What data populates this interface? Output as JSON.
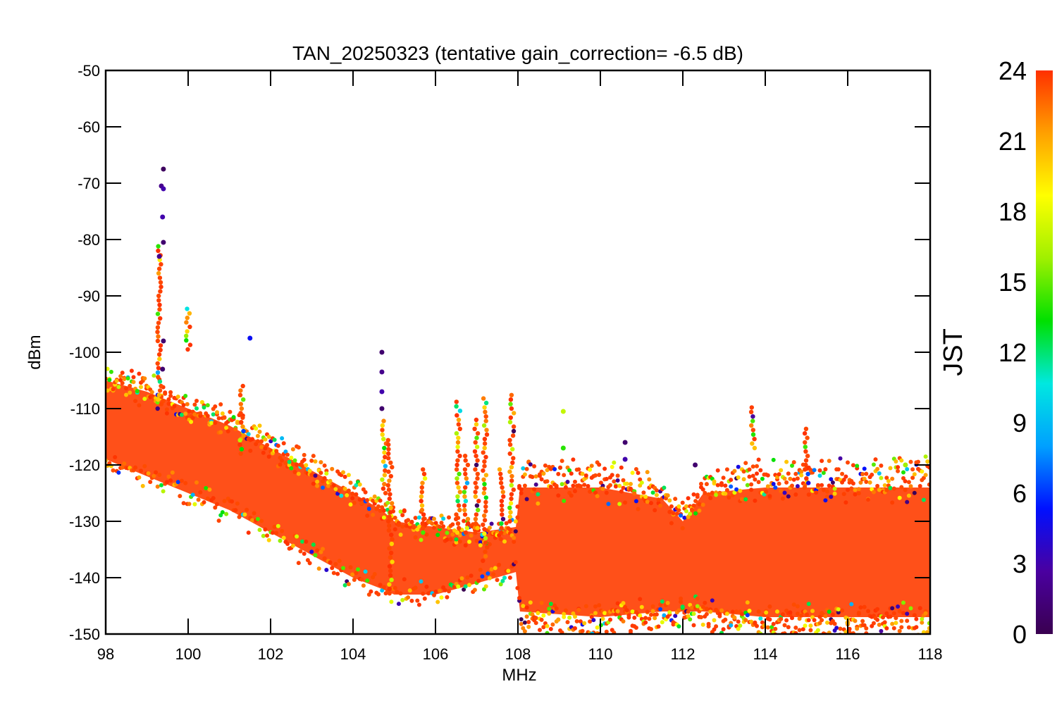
{
  "chart_data": {
    "type": "scatter",
    "title": "TAN_20250323 (tentative gain_correction= -6.5 dB)",
    "xlabel": "MHz",
    "ylabel": "dBm",
    "xlim": [
      98,
      118
    ],
    "ylim": [
      -150,
      -50
    ],
    "x_ticks": [
      "98",
      "100",
      "102",
      "104",
      "106",
      "108",
      "110",
      "112",
      "114",
      "116",
      "118"
    ],
    "y_ticks": [
      "-50",
      "-60",
      "-70",
      "-80",
      "-90",
      "-100",
      "-110",
      "-120",
      "-130",
      "-140",
      "-150"
    ],
    "grid": false,
    "colorbar": {
      "label": "JST",
      "range": [
        0,
        24
      ],
      "ticks": [
        "0",
        "3",
        "6",
        "9",
        "12",
        "15",
        "18",
        "21",
        "24"
      ],
      "colormap": [
        "#3a0050",
        "#4a00a0",
        "#0010ff",
        "#00a0ff",
        "#00e8e0",
        "#00e000",
        "#a0f000",
        "#ffff00",
        "#ffa000",
        "#ff3000"
      ]
    },
    "noise_floor": [
      {
        "x": 98,
        "low": -119,
        "high": -105
      },
      {
        "x": 99,
        "low": -122,
        "high": -107
      },
      {
        "x": 100,
        "low": -125,
        "high": -110
      },
      {
        "x": 101,
        "low": -128,
        "high": -113
      },
      {
        "x": 102,
        "low": -132,
        "high": -117
      },
      {
        "x": 103,
        "low": -136,
        "high": -121
      },
      {
        "x": 104,
        "low": -140,
        "high": -125
      },
      {
        "x": 104.7,
        "low": -142,
        "high": -128
      },
      {
        "x": 105.0,
        "low": -143,
        "high": -130
      },
      {
        "x": 106,
        "low": -143,
        "high": -131
      },
      {
        "x": 107,
        "low": -141,
        "high": -132
      },
      {
        "x": 107.95,
        "low": -139,
        "high": -131
      },
      {
        "x": 108.05,
        "low": -146,
        "high": -124
      },
      {
        "x": 110,
        "low": -147,
        "high": -124
      },
      {
        "x": 111.5,
        "low": -146,
        "high": -126
      },
      {
        "x": 112,
        "low": -146,
        "high": -130
      },
      {
        "x": 112.5,
        "low": -146,
        "high": -125
      },
      {
        "x": 114,
        "low": -147,
        "high": -124
      },
      {
        "x": 116,
        "low": -147,
        "high": -124
      },
      {
        "x": 118,
        "low": -147,
        "high": -124
      }
    ],
    "signals": [
      {
        "x": 99.3,
        "top": -80.5,
        "bottom": -110
      },
      {
        "x": 100.0,
        "top": -92,
        "bottom": -99.5
      },
      {
        "x": 101.3,
        "top": -106,
        "bottom": -118
      },
      {
        "x": 104.75,
        "top": -112,
        "bottom": -125
      },
      {
        "x": 104.9,
        "top": -115.5,
        "bottom": -142
      },
      {
        "x": 105.7,
        "top": -120,
        "bottom": -132
      },
      {
        "x": 106.55,
        "top": -108.5,
        "bottom": -132
      },
      {
        "x": 106.75,
        "top": -118,
        "bottom": -132
      },
      {
        "x": 107.0,
        "top": -111.5,
        "bottom": -132
      },
      {
        "x": 107.2,
        "top": -107.5,
        "bottom": -137
      },
      {
        "x": 107.6,
        "top": -120,
        "bottom": -132
      },
      {
        "x": 107.85,
        "top": -107.5,
        "bottom": -130
      },
      {
        "x": 113.7,
        "top": -109.5,
        "bottom": -117
      },
      {
        "x": 115.0,
        "top": -113,
        "bottom": -124
      }
    ],
    "sporadic_points": [
      {
        "x": 99.4,
        "y": -67.5,
        "jst": 0.5
      },
      {
        "x": 99.35,
        "y": -70.5,
        "jst": 2
      },
      {
        "x": 99.4,
        "y": -71,
        "jst": 3
      },
      {
        "x": 99.38,
        "y": -76,
        "jst": 3
      },
      {
        "x": 99.4,
        "y": -80.5,
        "jst": 1
      },
      {
        "x": 99.3,
        "y": -83,
        "jst": 2
      },
      {
        "x": 99.4,
        "y": -98,
        "jst": 1
      },
      {
        "x": 99.38,
        "y": -103,
        "jst": 1
      },
      {
        "x": 101.5,
        "y": -97.5,
        "jst": 5
      },
      {
        "x": 104.7,
        "y": -100,
        "jst": 1
      },
      {
        "x": 104.7,
        "y": -103.5,
        "jst": 2
      },
      {
        "x": 104.7,
        "y": -107,
        "jst": 3
      },
      {
        "x": 104.7,
        "y": -110,
        "jst": 1
      },
      {
        "x": 109.1,
        "y": -110.5,
        "jst": 17
      },
      {
        "x": 109.1,
        "y": -117,
        "jst": 14
      },
      {
        "x": 110.6,
        "y": -116,
        "jst": 1
      },
      {
        "x": 110.6,
        "y": -119,
        "jst": 3
      },
      {
        "x": 109.8,
        "y": -150,
        "jst": 9
      },
      {
        "x": 112.3,
        "y": -120,
        "jst": 1
      },
      {
        "x": 116.0,
        "y": -148,
        "jst": 21
      },
      {
        "x": 117.4,
        "y": -120,
        "jst": 16
      }
    ]
  }
}
